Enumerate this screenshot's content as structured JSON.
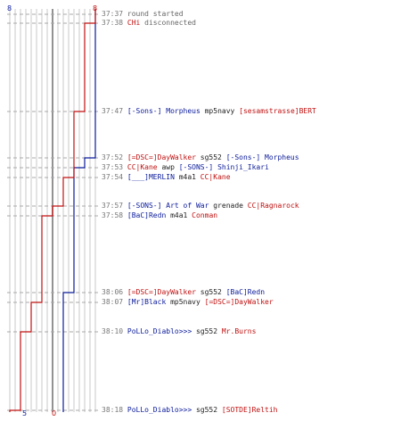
{
  "colors": {
    "team_a": "#0a1a9a",
    "team_b": "#c01010",
    "grid": "#c8c8c8",
    "center": "#777777"
  },
  "score": {
    "a_start": "8",
    "b_start": "8",
    "a_end": "5",
    "b_end": "0"
  },
  "events": [
    {
      "time": "37:37",
      "text": "round started"
    },
    {
      "time": "37:38",
      "player": "CHi",
      "side": "b",
      "text": "disconnected"
    },
    {
      "time": "37:47",
      "killer": "[-Sons-] Morpheus",
      "killer_side": "a",
      "weapon": "mp5navy",
      "victim": "[sesamstrasse]BERT",
      "victim_side": "b"
    },
    {
      "time": "37:52",
      "killer": "[=DSC=]DayWalker",
      "killer_side": "b",
      "weapon": "sg552",
      "victim": "[-Sons-] Morpheus",
      "victim_side": "a"
    },
    {
      "time": "37:53",
      "killer": "CC|Kane",
      "killer_side": "b",
      "weapon": "awp",
      "victim": "[-SONS-] Shinji_Ikari",
      "victim_side": "a"
    },
    {
      "time": "37:54",
      "killer": "[___]MERLIN",
      "killer_side": "a",
      "weapon": "m4a1",
      "victim": "CC|Kane",
      "victim_side": "b"
    },
    {
      "time": "37:57",
      "killer": "[-SONS-] Art of War",
      "killer_side": "a",
      "weapon": "grenade",
      "victim": "CC|Ragnarock",
      "victim_side": "b"
    },
    {
      "time": "37:58",
      "killer": "[BaC]Redn",
      "killer_side": "a",
      "weapon": "m4a1",
      "victim": "Conman",
      "victim_side": "b"
    },
    {
      "time": "38:06",
      "killer": "[=DSC=]DayWalker",
      "killer_side": "b",
      "weapon": "sg552",
      "victim": "[BaC]Redn",
      "victim_side": "a"
    },
    {
      "time": "38:07",
      "killer": "[Mr]Black",
      "killer_side": "a",
      "weapon": "mp5navy",
      "victim": "[=DSC=]DayWalker",
      "victim_side": "b"
    },
    {
      "time": "38:10",
      "killer": "PoLLo_Diablo>>>",
      "killer_side": "a",
      "weapon": "sg552",
      "victim": "Mr.Burns",
      "victim_side": "b"
    },
    {
      "time": "38:18",
      "killer": "PoLLo_Diablo>>>",
      "killer_side": "a",
      "weapon": "sg552",
      "victim": "[SOTDE]Reltih",
      "victim_side": "b"
    }
  ],
  "team_a_alive": [
    8,
    8,
    8,
    7,
    6,
    6,
    6,
    6,
    5,
    5,
    5,
    5
  ],
  "team_b_alive": [
    8,
    7,
    6,
    6,
    6,
    5,
    4,
    3,
    3,
    2,
    1,
    0
  ]
}
